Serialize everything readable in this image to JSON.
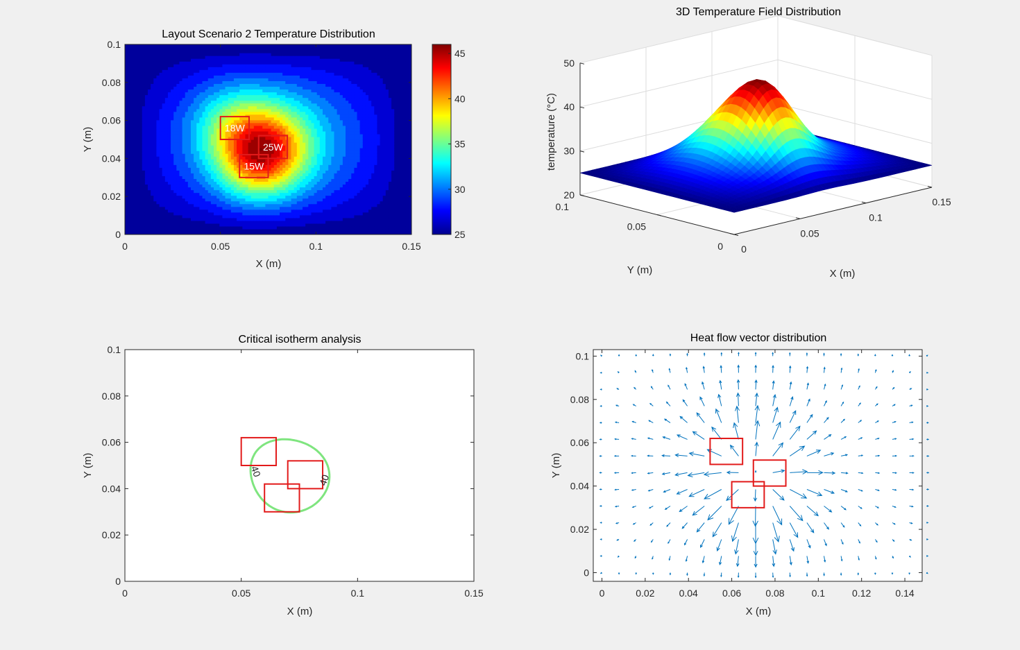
{
  "figure": {
    "background": "#f0f0f0"
  },
  "chart_data": [
    {
      "type": "heatmap",
      "title": "Layout Scenario 2 Temperature Distribution",
      "xlabel": "X (m)",
      "ylabel": "Y (m)",
      "xlim": [
        0,
        0.15
      ],
      "ylim": [
        0,
        0.1
      ],
      "x_ticks": [
        "0",
        "0.05",
        "0.1",
        "0.15"
      ],
      "y_ticks": [
        "0",
        "0.02",
        "0.04",
        "0.06",
        "0.08",
        "0.1"
      ],
      "colormap": "jet",
      "color_range": [
        25,
        46
      ],
      "colorbar_ticks": [
        "25",
        "30",
        "35",
        "40",
        "45"
      ],
      "chips": [
        {
          "label": "18W",
          "x": [
            0.05,
            0.065
          ],
          "y": [
            0.05,
            0.062
          ]
        },
        {
          "label": "25W",
          "x": [
            0.07,
            0.085
          ],
          "y": [
            0.04,
            0.052
          ]
        },
        {
          "label": "15W",
          "x": [
            0.06,
            0.075
          ],
          "y": [
            0.03,
            0.042
          ]
        }
      ]
    },
    {
      "type": "surface",
      "title": "3D Temperature Field Distribution",
      "xlabel": "X (m)",
      "ylabel": "Y (m)",
      "zlabel": "temperature (°C)",
      "xlim": [
        0,
        0.15
      ],
      "ylim": [
        0,
        0.1
      ],
      "zlim": [
        20,
        50
      ],
      "x_ticks": [
        "0",
        "0.05",
        "0.1",
        "0.15"
      ],
      "y_ticks": [
        "0",
        "0.05",
        "0.1"
      ],
      "z_ticks": [
        "20",
        "30",
        "40",
        "50"
      ],
      "colormap": "jet",
      "base_temperature": 25,
      "peak_temperature": 46
    },
    {
      "type": "contour",
      "title": "Critical isotherm analysis",
      "xlabel": "X (m)",
      "ylabel": "Y (m)",
      "xlim": [
        0,
        0.15
      ],
      "ylim": [
        0,
        0.1
      ],
      "x_ticks": [
        "0",
        "0.05",
        "0.1",
        "0.15"
      ],
      "y_ticks": [
        "0",
        "0.02",
        "0.04",
        "0.06",
        "0.08",
        "0.1"
      ],
      "isotherm_level": 40,
      "contour_labels": [
        "40",
        "40"
      ],
      "contour_color": "#7fe57f",
      "chip_color": "#e21a1a",
      "chips": [
        {
          "x": [
            0.05,
            0.065
          ],
          "y": [
            0.05,
            0.062
          ]
        },
        {
          "x": [
            0.07,
            0.085
          ],
          "y": [
            0.04,
            0.052
          ]
        },
        {
          "x": [
            0.06,
            0.075
          ],
          "y": [
            0.03,
            0.042
          ]
        }
      ]
    },
    {
      "type": "quiver",
      "title": "Heat flow vector distribution",
      "xlabel": "X (m)",
      "ylabel": "Y (m)",
      "xlim": [
        -0.004,
        0.148
      ],
      "ylim": [
        -0.004,
        0.103
      ],
      "x_ticks": [
        "0",
        "0.02",
        "0.04",
        "0.06",
        "0.08",
        "0.1",
        "0.12",
        "0.14"
      ],
      "y_ticks": [
        "0",
        "0.02",
        "0.04",
        "0.06",
        "0.08",
        "0.1"
      ],
      "arrow_color": "#0072bd",
      "chip_color": "#e21a1a",
      "chips": [
        {
          "x": [
            0.05,
            0.065
          ],
          "y": [
            0.05,
            0.062
          ]
        },
        {
          "x": [
            0.07,
            0.085
          ],
          "y": [
            0.04,
            0.052
          ]
        },
        {
          "x": [
            0.06,
            0.075
          ],
          "y": [
            0.03,
            0.042
          ]
        }
      ]
    }
  ]
}
